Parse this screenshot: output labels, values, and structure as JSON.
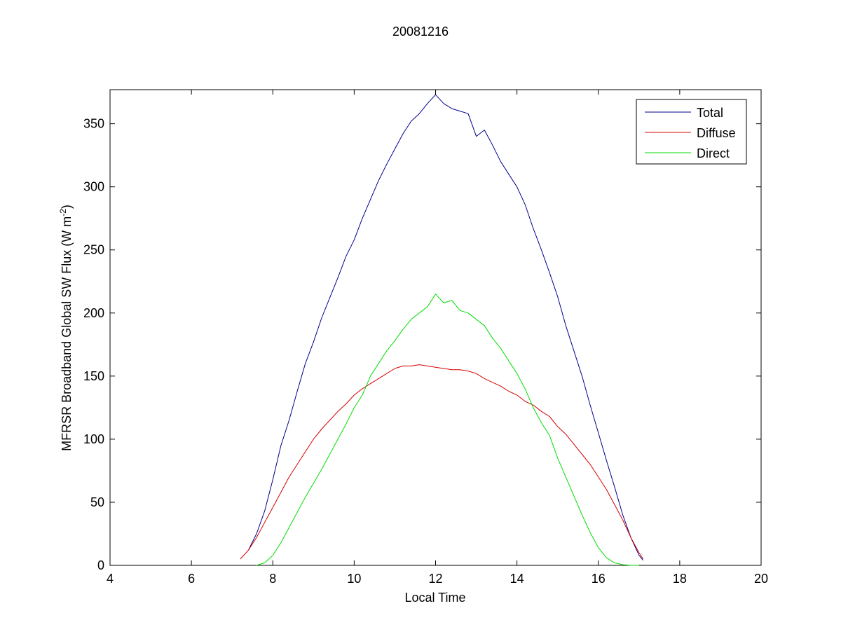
{
  "chart_data": {
    "type": "line",
    "title": "20081216",
    "xlabel": "Local Time",
    "ylabel_main": "MFRSR Broadband Global SW Flux (W m",
    "ylabel_sup": "-2",
    "ylabel_close": ")",
    "xlim": [
      4,
      20
    ],
    "ylim": [
      0,
      377
    ],
    "xticks": [
      4,
      6,
      8,
      10,
      12,
      14,
      16,
      18,
      20
    ],
    "yticks": [
      0,
      50,
      100,
      150,
      200,
      250,
      300,
      350
    ],
    "grid": false,
    "legend_position": "top-right",
    "series": [
      {
        "name": "Total",
        "color": "#00008B",
        "x": [
          7.4,
          7.6,
          7.8,
          8.0,
          8.2,
          8.4,
          8.6,
          8.8,
          9.0,
          9.2,
          9.4,
          9.6,
          9.8,
          10.0,
          10.2,
          10.4,
          10.6,
          10.8,
          11.0,
          11.2,
          11.4,
          11.6,
          11.8,
          12.0,
          12.2,
          12.4,
          12.6,
          12.8,
          13.0,
          13.2,
          13.4,
          13.6,
          13.8,
          14.0,
          14.2,
          14.4,
          14.6,
          14.8,
          15.0,
          15.2,
          15.4,
          15.6,
          15.8,
          16.0,
          16.2,
          16.4,
          16.6,
          16.8,
          17.0,
          17.1
        ],
        "y": [
          12,
          25,
          43,
          68,
          95,
          115,
          138,
          160,
          177,
          196,
          212,
          228,
          245,
          258,
          275,
          290,
          305,
          318,
          330,
          342,
          352,
          358,
          366,
          373,
          366,
          362,
          360,
          358,
          340,
          345,
          333,
          320,
          310,
          300,
          286,
          267,
          250,
          232,
          213,
          190,
          170,
          150,
          127,
          105,
          83,
          62,
          40,
          22,
          8,
          4
        ]
      },
      {
        "name": "Diffuse",
        "color": "#D40000",
        "x": [
          7.2,
          7.4,
          7.6,
          7.8,
          8.0,
          8.2,
          8.4,
          8.6,
          8.8,
          9.0,
          9.2,
          9.4,
          9.6,
          9.8,
          10.0,
          10.2,
          10.4,
          10.6,
          10.8,
          11.0,
          11.2,
          11.4,
          11.6,
          11.8,
          12.0,
          12.2,
          12.4,
          12.6,
          12.8,
          13.0,
          13.2,
          13.4,
          13.6,
          13.8,
          14.0,
          14.2,
          14.4,
          14.6,
          14.8,
          15.0,
          15.2,
          15.4,
          15.6,
          15.8,
          16.0,
          16.2,
          16.4,
          16.6,
          16.8,
          17.0,
          17.1
        ],
        "y": [
          5,
          12,
          22,
          34,
          46,
          58,
          70,
          80,
          90,
          100,
          108,
          115,
          122,
          128,
          135,
          140,
          144,
          148,
          152,
          156,
          158,
          158,
          159,
          158,
          157,
          156,
          155,
          155,
          154,
          152,
          148,
          145,
          142,
          138,
          135,
          130,
          127,
          122,
          118,
          110,
          104,
          96,
          88,
          80,
          70,
          60,
          48,
          36,
          22,
          10,
          5
        ]
      },
      {
        "name": "Direct",
        "color": "#00DD00",
        "x": [
          7.6,
          7.8,
          8.0,
          8.2,
          8.4,
          8.6,
          8.8,
          9.0,
          9.2,
          9.4,
          9.6,
          9.8,
          10.0,
          10.2,
          10.4,
          10.6,
          10.8,
          11.0,
          11.2,
          11.4,
          11.6,
          11.8,
          12.0,
          12.2,
          12.4,
          12.6,
          12.8,
          13.0,
          13.2,
          13.4,
          13.6,
          13.8,
          14.0,
          14.2,
          14.4,
          14.6,
          14.8,
          15.0,
          15.2,
          15.4,
          15.6,
          15.8,
          16.0,
          16.2,
          16.4,
          16.6,
          16.8,
          17.0
        ],
        "y": [
          0,
          2,
          8,
          18,
          30,
          42,
          54,
          65,
          76,
          88,
          100,
          112,
          125,
          135,
          150,
          160,
          170,
          178,
          187,
          195,
          200,
          205,
          215,
          208,
          210,
          202,
          200,
          195,
          190,
          180,
          172,
          162,
          152,
          140,
          125,
          113,
          103,
          85,
          70,
          55,
          40,
          26,
          14,
          6,
          2,
          0.5,
          0,
          0
        ]
      }
    ]
  }
}
